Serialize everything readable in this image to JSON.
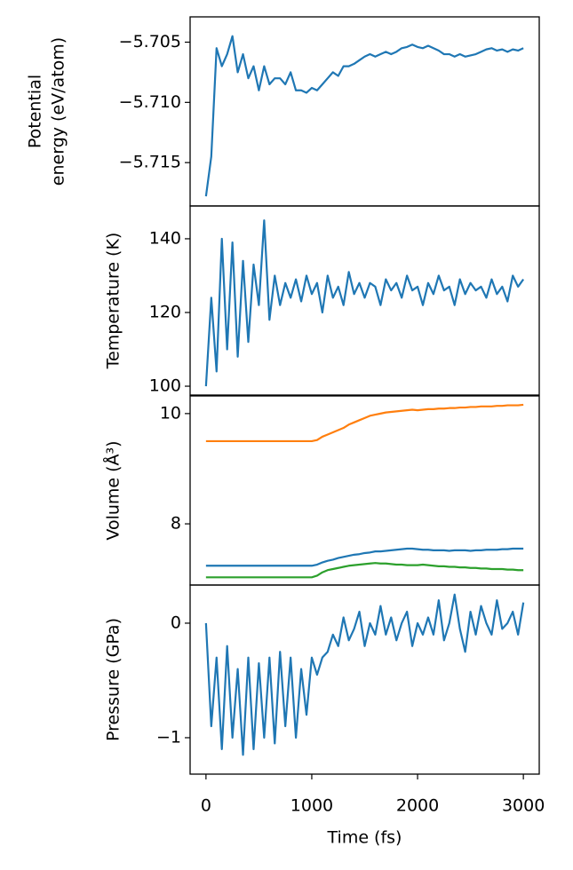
{
  "chart_data": [
    {
      "type": "line",
      "ylabel": [
        "Potential",
        "energy (eV/atom)"
      ],
      "x": [
        0,
        50,
        100,
        150,
        200,
        250,
        300,
        350,
        400,
        450,
        500,
        550,
        600,
        650,
        700,
        750,
        800,
        850,
        900,
        950,
        1000,
        1050,
        1100,
        1150,
        1200,
        1250,
        1300,
        1350,
        1400,
        1450,
        1500,
        1550,
        1600,
        1650,
        1700,
        1750,
        1800,
        1850,
        1900,
        1950,
        2000,
        2050,
        2100,
        2150,
        2200,
        2250,
        2300,
        2350,
        2400,
        2450,
        2500,
        2550,
        2600,
        2650,
        2700,
        2750,
        2800,
        2850,
        2900,
        2950,
        3000
      ],
      "series": [
        {
          "color": "#1f77b4",
          "values": [
            -5.7178,
            -5.7145,
            -5.7055,
            -5.707,
            -5.706,
            -5.7045,
            -5.7075,
            -5.706,
            -5.708,
            -5.707,
            -5.709,
            -5.707,
            -5.7085,
            -5.708,
            -5.708,
            -5.7085,
            -5.7075,
            -5.709,
            -5.709,
            -5.7092,
            -5.7088,
            -5.709,
            -5.7085,
            -5.708,
            -5.7075,
            -5.7078,
            -5.707,
            -5.707,
            -5.7068,
            -5.7065,
            -5.7062,
            -5.706,
            -5.7062,
            -5.706,
            -5.7058,
            -5.706,
            -5.7058,
            -5.7055,
            -5.7054,
            -5.7052,
            -5.7054,
            -5.7055,
            -5.7053,
            -5.7055,
            -5.7057,
            -5.706,
            -5.706,
            -5.7062,
            -5.706,
            -5.7062,
            -5.7061,
            -5.706,
            -5.7058,
            -5.7056,
            -5.7055,
            -5.7057,
            -5.7056,
            -5.7058,
            -5.7056,
            -5.7057,
            -5.7055
          ]
        }
      ],
      "xlim": [
        -150,
        3150
      ],
      "ylim": [
        -5.7186,
        -5.7029
      ],
      "yticks": [
        {
          "value": -5.715,
          "label": "−5.715"
        },
        {
          "value": -5.71,
          "label": "−5.710"
        },
        {
          "value": -5.705,
          "label": "−5.705"
        }
      ]
    },
    {
      "type": "line",
      "ylabel": "Temperature (K)",
      "x": [
        0,
        50,
        100,
        150,
        200,
        250,
        300,
        350,
        400,
        450,
        500,
        550,
        600,
        650,
        700,
        750,
        800,
        850,
        900,
        950,
        1000,
        1050,
        1100,
        1150,
        1200,
        1250,
        1300,
        1350,
        1400,
        1450,
        1500,
        1550,
        1600,
        1650,
        1700,
        1750,
        1800,
        1850,
        1900,
        1950,
        2000,
        2050,
        2100,
        2150,
        2200,
        2250,
        2300,
        2350,
        2400,
        2450,
        2500,
        2550,
        2600,
        2650,
        2700,
        2750,
        2800,
        2850,
        2900,
        2950,
        3000
      ],
      "series": [
        {
          "color": "#1f77b4",
          "values": [
            100,
            124,
            104,
            140,
            110,
            139,
            108,
            134,
            112,
            133,
            122,
            145,
            118,
            130,
            122,
            128,
            124,
            129,
            123,
            130,
            125,
            128,
            120,
            130,
            124,
            127,
            122,
            131,
            125,
            128,
            124,
            128,
            127,
            122,
            129,
            126,
            128,
            124,
            130,
            126,
            127,
            122,
            128,
            125,
            130,
            126,
            127,
            122,
            129,
            125,
            128,
            126,
            127,
            124,
            129,
            125,
            127,
            123,
            130,
            127,
            129
          ]
        }
      ],
      "xlim": [
        -150,
        3150
      ],
      "ylim": [
        97.6,
        148.9
      ],
      "yticks": [
        100,
        120,
        140
      ]
    },
    {
      "type": "line",
      "ylabel": "Volume (Å³)",
      "x": [
        0,
        50,
        100,
        150,
        200,
        250,
        300,
        350,
        400,
        450,
        500,
        550,
        600,
        650,
        700,
        750,
        800,
        850,
        900,
        950,
        1000,
        1050,
        1100,
        1150,
        1200,
        1250,
        1300,
        1350,
        1400,
        1450,
        1500,
        1550,
        1600,
        1650,
        1700,
        1750,
        1800,
        1850,
        1900,
        1950,
        2000,
        2050,
        2100,
        2150,
        2200,
        2250,
        2300,
        2350,
        2400,
        2450,
        2500,
        2550,
        2600,
        2650,
        2700,
        2750,
        2800,
        2850,
        2900,
        2950,
        3000
      ],
      "series": [
        {
          "color": "#1f77b4",
          "values": [
            7.24,
            7.24,
            7.24,
            7.24,
            7.24,
            7.24,
            7.24,
            7.24,
            7.24,
            7.24,
            7.24,
            7.24,
            7.24,
            7.24,
            7.24,
            7.24,
            7.24,
            7.24,
            7.24,
            7.24,
            7.24,
            7.26,
            7.3,
            7.33,
            7.35,
            7.38,
            7.4,
            7.42,
            7.44,
            7.45,
            7.47,
            7.48,
            7.5,
            7.5,
            7.51,
            7.52,
            7.53,
            7.54,
            7.55,
            7.55,
            7.54,
            7.53,
            7.53,
            7.52,
            7.52,
            7.52,
            7.51,
            7.52,
            7.52,
            7.52,
            7.51,
            7.52,
            7.52,
            7.53,
            7.53,
            7.53,
            7.54,
            7.54,
            7.55,
            7.55,
            7.55
          ]
        },
        {
          "color": "#ff7f0e",
          "values": [
            9.5,
            9.5,
            9.5,
            9.5,
            9.5,
            9.5,
            9.5,
            9.5,
            9.5,
            9.5,
            9.5,
            9.5,
            9.5,
            9.5,
            9.5,
            9.5,
            9.5,
            9.5,
            9.5,
            9.5,
            9.5,
            9.52,
            9.58,
            9.62,
            9.66,
            9.7,
            9.74,
            9.8,
            9.84,
            9.88,
            9.92,
            9.96,
            9.98,
            10.0,
            10.02,
            10.03,
            10.04,
            10.05,
            10.06,
            10.07,
            10.06,
            10.07,
            10.08,
            10.08,
            10.09,
            10.09,
            10.1,
            10.1,
            10.11,
            10.11,
            10.12,
            10.12,
            10.13,
            10.13,
            10.13,
            10.14,
            10.14,
            10.15,
            10.15,
            10.15,
            10.16
          ]
        },
        {
          "color": "#2ca02c",
          "values": [
            7.03,
            7.03,
            7.03,
            7.03,
            7.03,
            7.03,
            7.03,
            7.03,
            7.03,
            7.03,
            7.03,
            7.03,
            7.03,
            7.03,
            7.03,
            7.03,
            7.03,
            7.03,
            7.03,
            7.03,
            7.03,
            7.06,
            7.12,
            7.16,
            7.18,
            7.2,
            7.22,
            7.24,
            7.25,
            7.26,
            7.27,
            7.28,
            7.29,
            7.28,
            7.28,
            7.27,
            7.26,
            7.26,
            7.25,
            7.25,
            7.25,
            7.26,
            7.25,
            7.24,
            7.23,
            7.23,
            7.22,
            7.22,
            7.21,
            7.21,
            7.2,
            7.2,
            7.19,
            7.19,
            7.18,
            7.18,
            7.18,
            7.17,
            7.17,
            7.16,
            7.16
          ]
        }
      ],
      "xlim": [
        -150,
        3150
      ],
      "ylim": [
        6.89,
        10.32
      ],
      "yticks": [
        8,
        10
      ]
    },
    {
      "type": "line",
      "ylabel": "Pressure (GPa)",
      "xlabel": "Time (fs)",
      "x": [
        0,
        50,
        100,
        150,
        200,
        250,
        300,
        350,
        400,
        450,
        500,
        550,
        600,
        650,
        700,
        750,
        800,
        850,
        900,
        950,
        1000,
        1050,
        1100,
        1150,
        1200,
        1250,
        1300,
        1350,
        1400,
        1450,
        1500,
        1550,
        1600,
        1650,
        1700,
        1750,
        1800,
        1850,
        1900,
        1950,
        2000,
        2050,
        2100,
        2150,
        2200,
        2250,
        2300,
        2350,
        2400,
        2450,
        2500,
        2550,
        2600,
        2650,
        2700,
        2750,
        2800,
        2850,
        2900,
        2950,
        3000
      ],
      "series": [
        {
          "color": "#1f77b4",
          "values": [
            0,
            -0.9,
            -0.3,
            -1.1,
            -0.2,
            -1.0,
            -0.4,
            -1.15,
            -0.3,
            -1.1,
            -0.35,
            -1.0,
            -0.3,
            -1.05,
            -0.25,
            -0.9,
            -0.3,
            -1.0,
            -0.4,
            -0.8,
            -0.3,
            -0.45,
            -0.3,
            -0.25,
            -0.1,
            -0.2,
            0.05,
            -0.15,
            -0.05,
            0.1,
            -0.2,
            0.0,
            -0.1,
            0.15,
            -0.1,
            0.05,
            -0.15,
            0.0,
            0.1,
            -0.2,
            0.0,
            -0.1,
            0.05,
            -0.1,
            0.2,
            -0.15,
            0.0,
            0.25,
            -0.05,
            -0.25,
            0.1,
            -0.1,
            0.15,
            0.0,
            -0.1,
            0.2,
            -0.05,
            0.0,
            0.1,
            -0.1,
            0.18
          ]
        }
      ],
      "xlim": [
        -150,
        3150
      ],
      "ylim": [
        -1.318,
        0.333
      ],
      "yticks": [
        {
          "value": -1,
          "label": "−1"
        },
        0
      ],
      "xticks": [
        0,
        1000,
        2000,
        3000
      ]
    }
  ]
}
